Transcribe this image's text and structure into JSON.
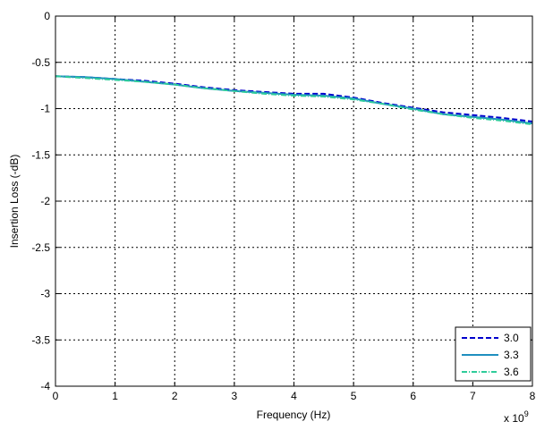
{
  "chart_data": {
    "type": "line",
    "title": "",
    "xlabel": "Frequency (Hz)",
    "ylabel": "Insertion Loss (-dB)",
    "x_multiplier_label": "x 10",
    "x_multiplier_exponent": "9",
    "xlim": [
      0,
      8
    ],
    "ylim": [
      -4,
      0
    ],
    "xticks": [
      0,
      1,
      2,
      3,
      4,
      5,
      6,
      7,
      8
    ],
    "yticks": [
      0,
      -0.5,
      -1,
      -1.5,
      -2,
      -2.5,
      -3,
      -3.5,
      -4
    ],
    "xtick_labels": [
      "0",
      "1",
      "2",
      "3",
      "4",
      "5",
      "6",
      "7",
      "8"
    ],
    "ytick_labels": [
      "0",
      "-0.5",
      "-1",
      "-1.5",
      "-2",
      "-2.5",
      "-3",
      "-3.5",
      "-4"
    ],
    "grid": true,
    "legend_position": "bottom-right",
    "x": [
      0,
      0.5,
      1,
      1.5,
      2,
      2.5,
      3,
      3.5,
      4,
      4.5,
      5,
      5.5,
      6,
      6.5,
      7,
      7.5,
      8
    ],
    "series": [
      {
        "name": "3.0",
        "color": "#0000cc",
        "dash": "dashed",
        "values": [
          -0.65,
          -0.66,
          -0.68,
          -0.7,
          -0.73,
          -0.77,
          -0.8,
          -0.82,
          -0.84,
          -0.84,
          -0.88,
          -0.94,
          -0.99,
          -1.04,
          -1.07,
          -1.1,
          -1.14
        ]
      },
      {
        "name": "3.3",
        "color": "#1f8fbf",
        "dash": "solid",
        "values": [
          -0.65,
          -0.66,
          -0.68,
          -0.71,
          -0.74,
          -0.78,
          -0.81,
          -0.83,
          -0.85,
          -0.86,
          -0.89,
          -0.95,
          -1.0,
          -1.06,
          -1.09,
          -1.12,
          -1.16
        ]
      },
      {
        "name": "3.6",
        "color": "#2ecc9a",
        "dash": "dashdot",
        "values": [
          -0.65,
          -0.67,
          -0.69,
          -0.71,
          -0.74,
          -0.78,
          -0.81,
          -0.84,
          -0.86,
          -0.87,
          -0.9,
          -0.95,
          -1.01,
          -1.06,
          -1.1,
          -1.13,
          -1.17
        ]
      }
    ]
  }
}
